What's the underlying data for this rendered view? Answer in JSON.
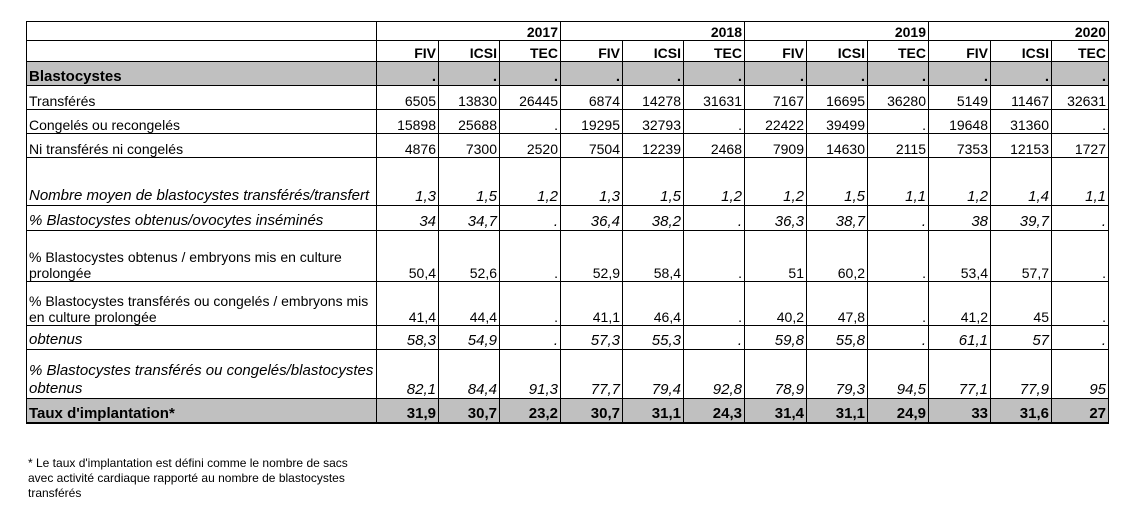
{
  "header": {
    "years": [
      "2017",
      "2018",
      "2019",
      "2020"
    ],
    "columns": [
      "FIV",
      "ICSI",
      "TEC",
      "FIV",
      "ICSI",
      "TEC",
      "FIV",
      "ICSI",
      "TEC",
      "FIV",
      "ICSI",
      "TEC"
    ]
  },
  "section": {
    "title": "Blastocystes",
    "values": [
      ".",
      ".",
      ".",
      ".",
      ".",
      ".",
      ".",
      ".",
      ".",
      ".",
      ".",
      "."
    ]
  },
  "rows": [
    {
      "label": "Transférés",
      "values": [
        "6505",
        "13830",
        "26445",
        "6874",
        "14278",
        "31631",
        "7167",
        "16695",
        "36280",
        "5149",
        "11467",
        "32631"
      ]
    },
    {
      "label": "Congelés ou recongelés",
      "values": [
        "15898",
        "25688",
        ".",
        "19295",
        "32793",
        ".",
        "22422",
        "39499",
        ".",
        "19648",
        "31360",
        "."
      ]
    },
    {
      "label": "Ni transférés ni congelés",
      "values": [
        "4876",
        "7300",
        "2520",
        "7504",
        "12239",
        "2468",
        "7909",
        "14630",
        "2115",
        "7353",
        "12153",
        "1727"
      ]
    },
    {
      "label": "Nombre moyen de blastocystes transférés/transfert",
      "values": [
        "1,3",
        "1,5",
        "1,2",
        "1,3",
        "1,5",
        "1,2",
        "1,2",
        "1,5",
        "1,1",
        "1,2",
        "1,4",
        "1,1"
      ]
    },
    {
      "label": "% Blastocystes obtenus/ovocytes inséminés",
      "values": [
        "34",
        "34,7",
        ".",
        "36,4",
        "38,2",
        ".",
        "36,3",
        "38,7",
        ".",
        "38",
        "39,7",
        "."
      ]
    },
    {
      "label": "% Blastocystes obtenus / embryons mis en culture prolongée",
      "values": [
        "50,4",
        "52,6",
        ".",
        "52,9",
        "58,4",
        ".",
        "51",
        "60,2",
        ".",
        "53,4",
        "57,7",
        "."
      ]
    },
    {
      "label": "% Blastocystes transférés ou congelés / embryons mis en culture prolongée",
      "values": [
        "41,4",
        "44,4",
        ".",
        "41,1",
        "46,4",
        ".",
        "40,2",
        "47,8",
        ".",
        "41,2",
        "45",
        "."
      ]
    },
    {
      "label": "obtenus",
      "values": [
        "58,3",
        "54,9",
        ".",
        "57,3",
        "55,3",
        ".",
        "59,8",
        "55,8",
        ".",
        "61,1",
        "57",
        "."
      ]
    },
    {
      "label": "% Blastocystes transférés ou congelés/blastocystes obtenus",
      "values": [
        "82,1",
        "84,4",
        "91,3",
        "77,7",
        "79,4",
        "92,8",
        "78,9",
        "79,3",
        "94,5",
        "77,1",
        "77,9",
        "95"
      ]
    }
  ],
  "total": {
    "label": "Taux d'implantation*",
    "values": [
      "31,9",
      "30,7",
      "23,2",
      "30,7",
      "31,1",
      "24,3",
      "31,4",
      "31,1",
      "24,9",
      "33",
      "31,6",
      "27"
    ]
  },
  "footnote": "* Le taux d'implantation est défini comme le nombre de sacs avec activité cardiaque rapporté au nombre de blastocystes transférés"
}
